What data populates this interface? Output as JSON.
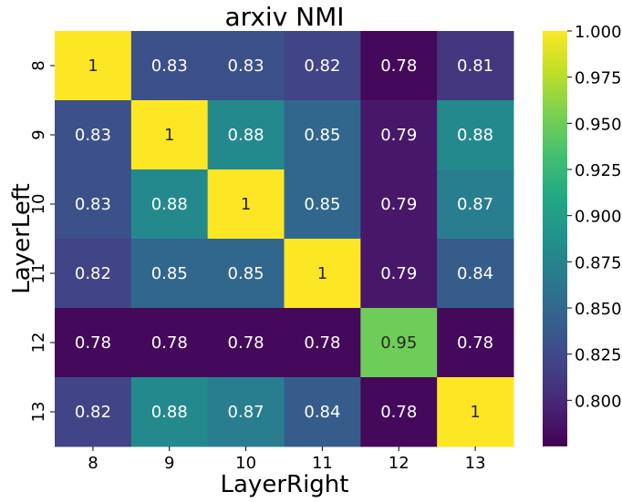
{
  "chart_data": {
    "type": "heatmap",
    "title": "arxiv NMI",
    "xlabel": "LayerRight",
    "ylabel": "LayerLeft",
    "x_categories": [
      "8",
      "9",
      "10",
      "11",
      "12",
      "13"
    ],
    "y_categories": [
      "8",
      "9",
      "10",
      "11",
      "12",
      "13"
    ],
    "values": [
      [
        1.0,
        0.83,
        0.83,
        0.82,
        0.78,
        0.81
      ],
      [
        0.83,
        1.0,
        0.88,
        0.85,
        0.79,
        0.88
      ],
      [
        0.83,
        0.88,
        1.0,
        0.85,
        0.79,
        0.87
      ],
      [
        0.82,
        0.85,
        0.85,
        1.0,
        0.79,
        0.84
      ],
      [
        0.78,
        0.78,
        0.78,
        0.78,
        0.95,
        0.78
      ],
      [
        0.82,
        0.88,
        0.87,
        0.84,
        0.78,
        1.0
      ]
    ],
    "labels": [
      [
        "1",
        "0.83",
        "0.83",
        "0.82",
        "0.78",
        "0.81"
      ],
      [
        "0.83",
        "1",
        "0.88",
        "0.85",
        "0.79",
        "0.88"
      ],
      [
        "0.83",
        "0.88",
        "1",
        "0.85",
        "0.79",
        "0.87"
      ],
      [
        "0.82",
        "0.85",
        "0.85",
        "1",
        "0.79",
        "0.84"
      ],
      [
        "0.78",
        "0.78",
        "0.78",
        "0.78",
        "0.95",
        "0.78"
      ],
      [
        "0.82",
        "0.88",
        "0.87",
        "0.84",
        "0.78",
        "1"
      ]
    ],
    "colormap": "viridis",
    "colorbar": {
      "vmin": 0.775,
      "vmax": 1.0,
      "ticks": [
        0.8,
        0.825,
        0.85,
        0.875,
        0.9,
        0.925,
        0.95,
        0.975,
        1.0
      ],
      "tick_labels": [
        "0.800",
        "0.825",
        "0.850",
        "0.875",
        "0.900",
        "0.925",
        "0.950",
        "0.975",
        "1.000"
      ]
    }
  }
}
